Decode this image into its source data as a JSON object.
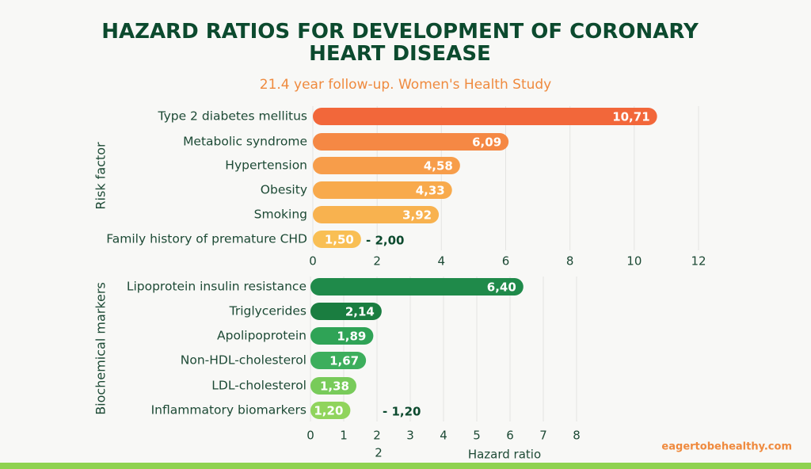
{
  "chart_data": [
    {
      "type": "hbar",
      "title": "HAZARD RATIOS FOR DEVELOPMENT OF CORONARY HEART DISEASE",
      "subtitle": "21.4 year follow-up. Women's Health Study",
      "y_label": "Risk factor",
      "categories": [
        "Type 2 diabetes mellitus",
        "Metabolic syndrome",
        "Hypertension",
        "Obesity",
        "Smoking",
        "Family history of premature CHD"
      ],
      "values": [
        10.71,
        6.09,
        4.58,
        4.33,
        3.92,
        1.5
      ],
      "value_labels": [
        "10,71",
        "6,09",
        "4,58",
        "4,33",
        "3,92",
        "1,50"
      ],
      "colors": [
        "#f2673a",
        "#f58844",
        "#f79d4a",
        "#f8aa4c",
        "#f8b24f",
        "#f9bf54"
      ],
      "xlim": [
        0,
        12
      ],
      "xticks": [
        0,
        2,
        4,
        6,
        8,
        10,
        12
      ],
      "grid": true,
      "annotations": [
        "- 2,00"
      ]
    },
    {
      "type": "hbar",
      "y_label": "Biochemical markers",
      "x_label": "Hazard ratio",
      "categories": [
        "Lipoprotein insulin resistance",
        "Triglycerides",
        "Apolipoprotein",
        "Non-HDL-cholesterol",
        "LDL-cholesterol",
        "Inflammatory biomarkers"
      ],
      "values": [
        6.4,
        2.14,
        1.89,
        1.67,
        1.38,
        1.2
      ],
      "value_labels": [
        "6,40",
        "2,14",
        "1,89",
        "1,67",
        "1,38",
        "1,20"
      ],
      "colors": [
        "#1f8a4a",
        "#1a7d40",
        "#2fa356",
        "#3cae5c",
        "#78cb5a",
        "#90d45c"
      ],
      "xlim": [
        0,
        8
      ],
      "xticks": [
        0,
        1,
        2,
        3,
        4,
        5,
        6,
        7,
        8
      ],
      "grid": true,
      "annotations": [
        "- 1,20",
        "2"
      ]
    }
  ],
  "footer": "eagertobehealthy.com"
}
